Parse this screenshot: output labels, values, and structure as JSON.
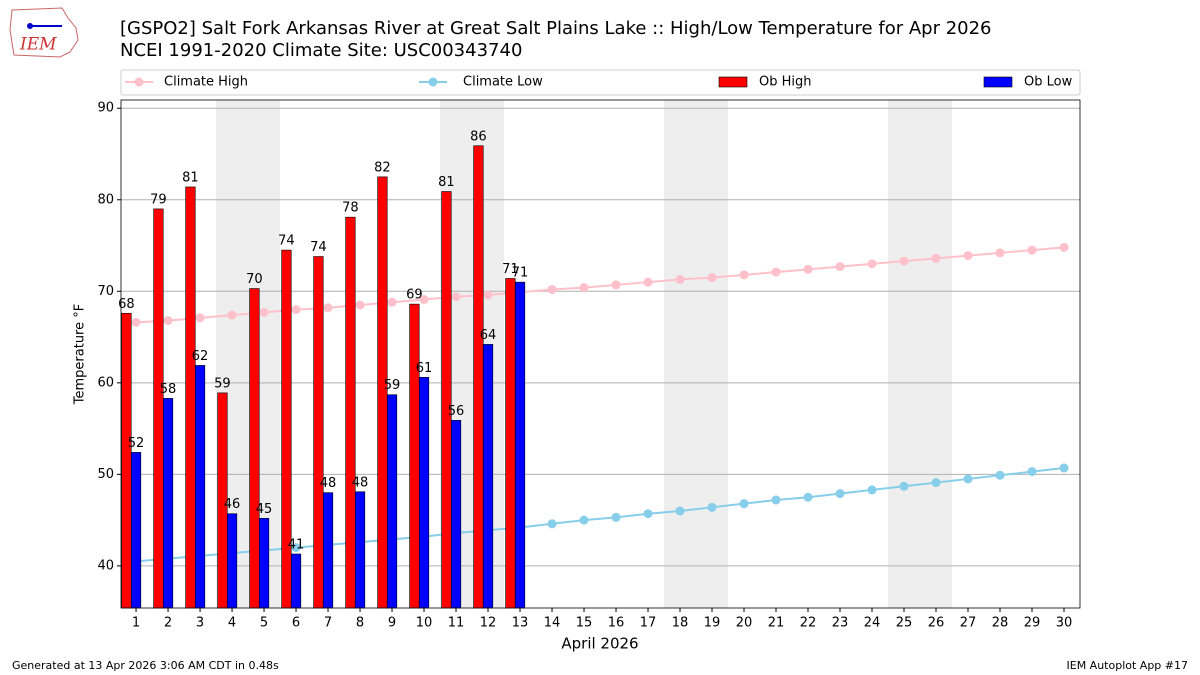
{
  "chart_data": {
    "type": "bar_line",
    "title": "[GSPO2] Salt Fork Arkansas River at Great Salt Plains Lake :: High/Low Temperature for Apr 2026",
    "subtitle": "NCEI 1991-2020 Climate Site: USC00343740",
    "xlabel": "April 2026",
    "ylabel": "Temperature °F",
    "logo_text": "IEM",
    "footer_left": "Generated at 13 Apr 2026 3:06 AM CDT in 0.48s",
    "footer_right": "IEM Autoplot App #17",
    "x": [
      1,
      2,
      3,
      4,
      5,
      6,
      7,
      8,
      9,
      10,
      11,
      12,
      13,
      14,
      15,
      16,
      17,
      18,
      19,
      20,
      21,
      22,
      23,
      24,
      25,
      26,
      27,
      28,
      29,
      30
    ],
    "xlim": [
      0.53,
      30.5
    ],
    "xticks": [
      1,
      2,
      3,
      4,
      5,
      6,
      7,
      8,
      9,
      10,
      11,
      12,
      13,
      14,
      15,
      16,
      17,
      18,
      19,
      20,
      21,
      22,
      23,
      24,
      25,
      26,
      27,
      28,
      29,
      30
    ],
    "ylim": [
      35.4,
      90.9
    ],
    "yticks": [
      40,
      50,
      60,
      70,
      80,
      90
    ],
    "grid": true,
    "shaded_ranges": [
      [
        3.5,
        5.5
      ],
      [
        10.5,
        12.5
      ],
      [
        17.5,
        19.5
      ],
      [
        24.5,
        26.5
      ]
    ],
    "series": [
      {
        "name": "Climate High",
        "kind": "line",
        "color": "#ffc0cb",
        "values": [
          66.6,
          66.8,
          67.1,
          67.4,
          67.7,
          68.0,
          68.2,
          68.5,
          68.8,
          69.1,
          69.4,
          69.6,
          69.9,
          70.2,
          70.4,
          70.7,
          71.0,
          71.3,
          71.5,
          71.8,
          72.1,
          72.4,
          72.7,
          73.0,
          73.3,
          73.6,
          73.9,
          74.2,
          74.5,
          74.8
        ]
      },
      {
        "name": "Climate Low",
        "kind": "line",
        "color": "#87ceeb",
        "values": [
          40.5,
          40.8,
          41.1,
          41.4,
          41.7,
          42.0,
          42.3,
          42.6,
          42.9,
          43.2,
          43.6,
          43.9,
          44.2,
          44.6,
          45.0,
          45.3,
          45.7,
          46.0,
          46.4,
          46.8,
          47.2,
          47.5,
          47.9,
          48.3,
          48.7,
          49.1,
          49.5,
          49.9,
          50.3,
          50.7
        ]
      },
      {
        "name": "Ob High",
        "kind": "bar",
        "color": "#ff0000",
        "values": [
          67.6,
          79.0,
          81.4,
          58.9,
          70.3,
          74.5,
          73.8,
          78.1,
          82.5,
          68.6,
          80.9,
          85.9,
          71.4,
          null,
          null,
          null,
          null,
          null,
          null,
          null,
          null,
          null,
          null,
          null,
          null,
          null,
          null,
          null,
          null,
          null
        ],
        "value_labels": [
          "68",
          "79",
          "81",
          "59",
          "70",
          "74",
          "74",
          "78",
          "82",
          "69",
          "81",
          "86",
          "71",
          null,
          null,
          null,
          null,
          null,
          null,
          null,
          null,
          null,
          null,
          null,
          null,
          null,
          null,
          null,
          null,
          null
        ]
      },
      {
        "name": "Ob Low",
        "kind": "bar",
        "color": "#0000ff",
        "values": [
          52.4,
          58.3,
          61.9,
          45.7,
          45.2,
          41.3,
          48.0,
          48.1,
          58.7,
          60.6,
          55.9,
          64.2,
          71.0,
          null,
          null,
          null,
          null,
          null,
          null,
          null,
          null,
          null,
          null,
          null,
          null,
          null,
          null,
          null,
          null,
          null
        ],
        "value_labels": [
          "52",
          "58",
          "62",
          "46",
          "45",
          "41",
          "48",
          "48",
          "59",
          "61",
          "56",
          "64",
          "71",
          null,
          null,
          null,
          null,
          null,
          null,
          null,
          null,
          null,
          null,
          null,
          null,
          null,
          null,
          null,
          null,
          null
        ]
      }
    ]
  }
}
